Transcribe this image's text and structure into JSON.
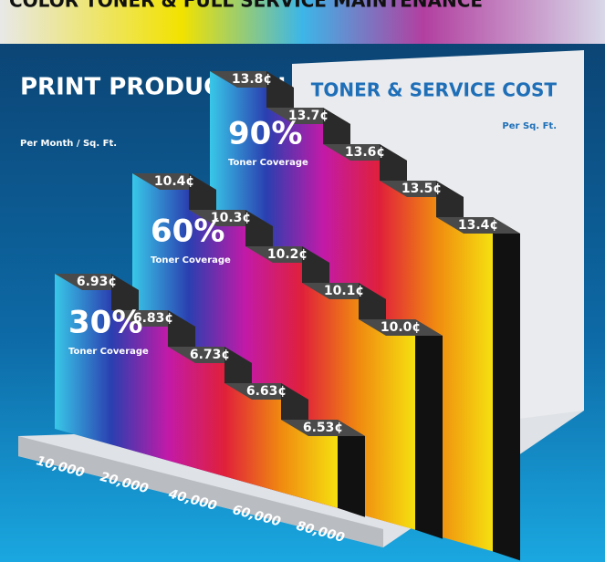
{
  "chart_data": {
    "type": "step3d",
    "banner": "COLOR TONER & FULL SERVICE MAINTENANCE",
    "title": "PRINT PRODUCTION",
    "subtitle": "Per Month / Sq. Ft.",
    "right_title": "TONER & SERVICE COST",
    "right_subtitle": "Per Sq. Ft.",
    "categories": [
      "10,000",
      "20,000",
      "40,000",
      "60,000",
      "80,000"
    ],
    "series": [
      {
        "name": "30%",
        "caption": "Toner Coverage",
        "values": [
          6.93,
          6.83,
          6.73,
          6.63,
          6.53
        ],
        "value_labels": [
          "6.93¢",
          "6.83¢",
          "6.73¢",
          "6.63¢",
          "6.53¢"
        ]
      },
      {
        "name": "60%",
        "caption": "Toner Coverage",
        "values": [
          10.4,
          10.3,
          10.2,
          10.1,
          10.0
        ],
        "value_labels": [
          "10.4¢",
          "10.3¢",
          "10.2¢",
          "10.1¢",
          "10.0¢"
        ]
      },
      {
        "name": "90%",
        "caption": "Toner Coverage",
        "values": [
          13.8,
          13.7,
          13.6,
          13.5,
          13.4
        ],
        "value_labels": [
          "13.8¢",
          "13.7¢",
          "13.6¢",
          "13.5¢",
          "13.4¢"
        ]
      }
    ]
  }
}
